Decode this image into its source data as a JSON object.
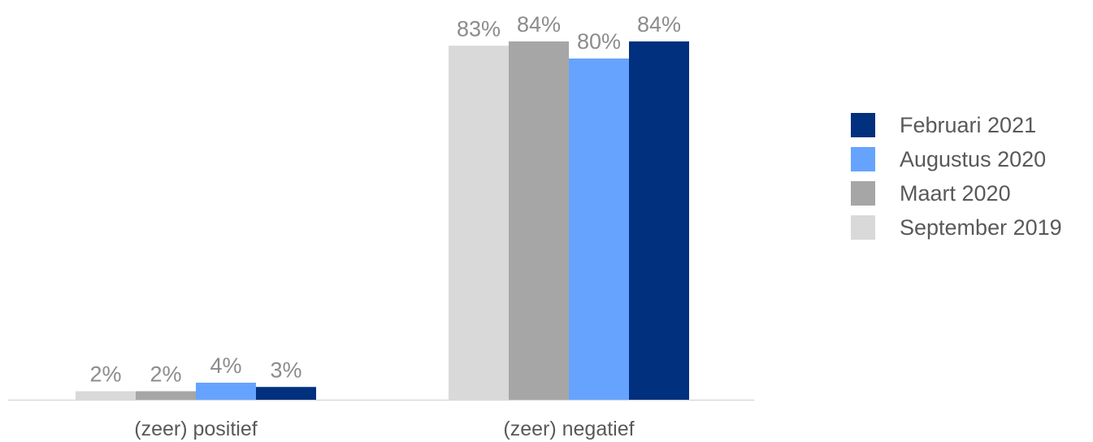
{
  "chart_data": {
    "type": "bar",
    "categories": [
      "(zeer) positief",
      "(zeer) negatief"
    ],
    "series": [
      {
        "name": "September 2019",
        "values": [
          2,
          83
        ],
        "labels": [
          "2%",
          "83%"
        ],
        "color": "#d9d9d9"
      },
      {
        "name": "Maart 2020",
        "values": [
          2,
          84
        ],
        "labels": [
          "2%",
          "84%"
        ],
        "color": "#a6a6a6"
      },
      {
        "name": "Augustus 2020",
        "values": [
          4,
          80
        ],
        "labels": [
          "4%",
          "80%"
        ],
        "color": "#66a3ff"
      },
      {
        "name": "Februari 2021",
        "values": [
          3,
          84
        ],
        "labels": [
          "3%",
          "84%"
        ],
        "color": "#00307e"
      }
    ],
    "legend_order": [
      "Februari 2021",
      "Augustus 2020",
      "Maart 2020",
      "September 2019"
    ],
    "ylim": [
      0,
      100
    ],
    "grid": false,
    "legend_position": "right"
  }
}
